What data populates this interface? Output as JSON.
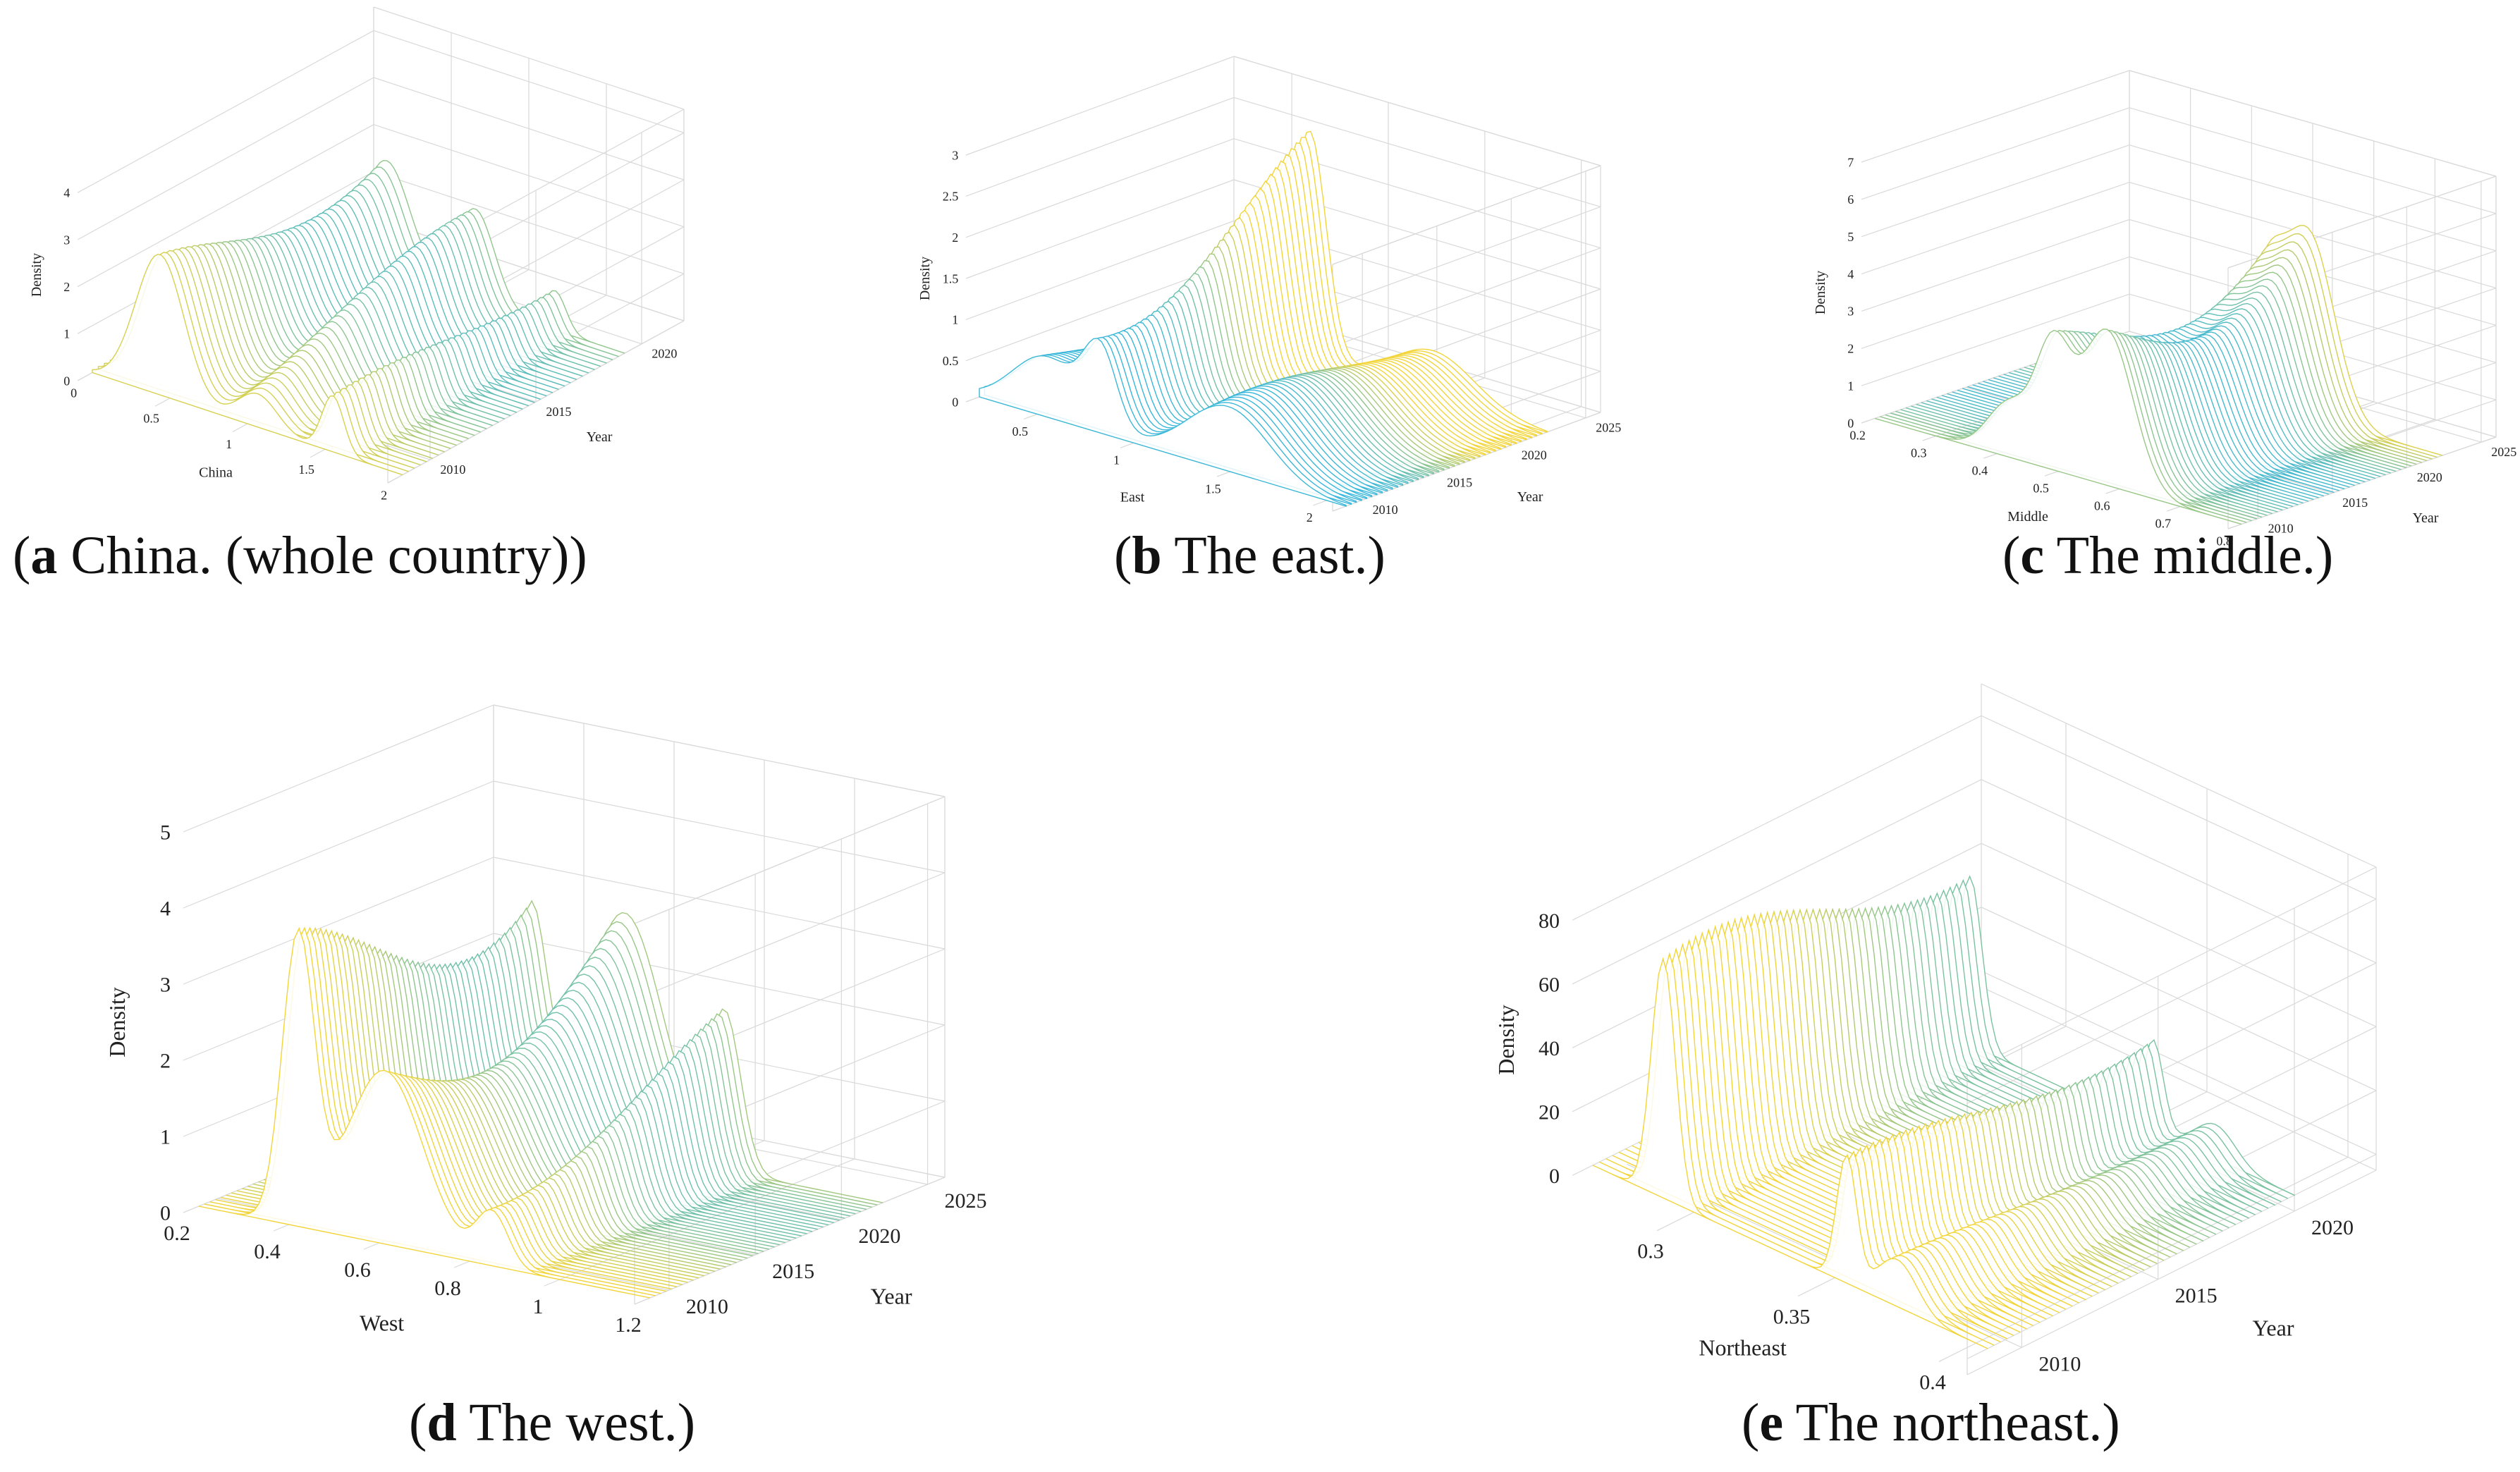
{
  "figure": {
    "colors": {
      "low": "#4a3ce0",
      "mid": "#2bb5e6",
      "high": "#f2d53a",
      "grid": "#d9d9d9",
      "axis": "#222222"
    }
  },
  "chart_data": [
    {
      "type": "surface3d",
      "panel_id": "a",
      "caption_letter": "a",
      "caption_text": " China. (whole country)",
      "xlabel": "China",
      "ylabel": "Year",
      "zlabel": "Density",
      "x_ticks": [
        "0",
        "0.5",
        "1",
        "1.5",
        "2"
      ],
      "x_range": [
        0,
        2
      ],
      "y_ticks": [
        "2010",
        "2015",
        "2020"
      ],
      "y_range": [
        2008,
        2022
      ],
      "z_ticks": [
        "0",
        "1",
        "2",
        "3",
        "4"
      ],
      "z_range": [
        0,
        4.5
      ],
      "peaks": [
        {
          "x": 0.45,
          "w": 0.22,
          "h": 3.2,
          "trend": 0.05
        },
        {
          "x": 1.05,
          "w": 0.18,
          "h": 1.6,
          "trend": -0.05
        },
        {
          "x": 1.55,
          "w": 0.1,
          "h": 1.2,
          "trend": 0.0
        }
      ]
    },
    {
      "type": "surface3d",
      "panel_id": "b",
      "caption_letter": "b",
      "caption_text": " The east.",
      "xlabel": "East",
      "ylabel": "Year",
      "zlabel": "Density",
      "x_ticks": [
        "0.5",
        "1",
        "1.5",
        "2"
      ],
      "x_range": [
        0.2,
        2.1
      ],
      "y_ticks": [
        "2010",
        "2015",
        "2020",
        "2025"
      ],
      "y_range": [
        2008,
        2026
      ],
      "z_ticks": [
        "0",
        "0.5",
        "1",
        "1.5",
        "2",
        "2.5",
        "3"
      ],
      "z_range": [
        0,
        3
      ],
      "peaks": [
        {
          "x": 0.85,
          "w": 0.12,
          "h": 2.1,
          "trend": 0.08
        },
        {
          "x": 0.55,
          "w": 0.25,
          "h": 0.9,
          "trend": 0.0
        },
        {
          "x": 1.5,
          "w": 0.3,
          "h": 0.8,
          "trend": 0.04
        }
      ]
    },
    {
      "type": "surface3d",
      "panel_id": "c",
      "caption_letter": "c",
      "caption_text": " The middle.",
      "xlabel": "Middle",
      "ylabel": "Year",
      "zlabel": "Density",
      "x_ticks": [
        "0.2",
        "0.3",
        "0.4",
        "0.5",
        "0.6",
        "0.7",
        "0.8"
      ],
      "x_range": [
        0.2,
        0.8
      ],
      "y_ticks": [
        "2010",
        "2015",
        "2020",
        "2025"
      ],
      "y_range": [
        2008,
        2026
      ],
      "z_ticks": [
        "0",
        "1",
        "2",
        "3",
        "4",
        "5",
        "6",
        "7"
      ],
      "z_range": [
        0,
        7
      ],
      "peaks": [
        {
          "x": 0.58,
          "w": 0.06,
          "h": 5.4,
          "trend": 0.0
        },
        {
          "x": 0.5,
          "w": 0.04,
          "h": 3.5,
          "trend": 0.1
        },
        {
          "x": 0.42,
          "w": 0.05,
          "h": 1.5,
          "trend": 0.0
        }
      ]
    },
    {
      "type": "surface3d",
      "panel_id": "d",
      "caption_letter": "d",
      "caption_text": " The west.",
      "xlabel": "West",
      "ylabel": "Year",
      "zlabel": "Density",
      "x_ticks": [
        "0.2",
        "0.4",
        "0.6",
        "0.8",
        "1",
        "1.2"
      ],
      "x_range": [
        0.2,
        1.2
      ],
      "y_ticks": [
        "2010",
        "2015",
        "2020",
        "2025"
      ],
      "y_range": [
        2008,
        2026
      ],
      "z_ticks": [
        "0",
        "1",
        "2",
        "3",
        "4",
        "5"
      ],
      "z_range": [
        0,
        5
      ],
      "peaks": [
        {
          "x": 0.42,
          "w": 0.05,
          "h": 3.9,
          "trend": 0.0
        },
        {
          "x": 0.62,
          "w": 0.12,
          "h": 3.2,
          "trend": 0.05
        },
        {
          "x": 0.85,
          "w": 0.05,
          "h": 1.6,
          "trend": 0.0
        }
      ]
    },
    {
      "type": "surface3d",
      "panel_id": "e",
      "caption_letter": "e",
      "caption_text": " The northeast.",
      "xlabel": "Northeast",
      "ylabel": "Year",
      "zlabel": "Density",
      "x_ticks": [
        "0.3",
        "0.35",
        "0.4"
      ],
      "x_range": [
        0.27,
        0.41
      ],
      "y_ticks": [
        "2010",
        "2015",
        "2020"
      ],
      "y_range": [
        2008,
        2023
      ],
      "z_ticks": [
        "0",
        "20",
        "40",
        "60",
        "80"
      ],
      "z_range": [
        -5,
        90
      ],
      "peaks": [
        {
          "x": 0.295,
          "w": 0.006,
          "h": 75,
          "trend": 0.0
        },
        {
          "x": 0.36,
          "w": 0.005,
          "h": 40,
          "trend": 0.0
        },
        {
          "x": 0.38,
          "w": 0.01,
          "h": 15,
          "trend": 0.1
        }
      ]
    }
  ]
}
